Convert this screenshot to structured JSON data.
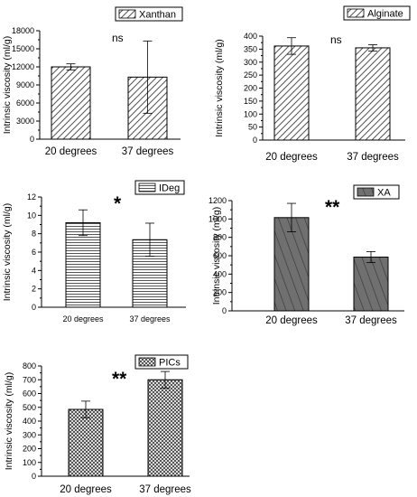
{
  "chart_data": [
    {
      "type": "bar",
      "ylabel": "Intrinsic viscosity (ml/g)",
      "categories": [
        "20 degrees",
        "37 degrees"
      ],
      "series": [
        {
          "name": "Xanthan",
          "values": [
            12000,
            10300
          ],
          "errors": [
            500,
            6000
          ]
        }
      ],
      "ylim": [
        0,
        18000
      ],
      "yticks": [
        "0",
        "3000",
        "6000",
        "9000",
        "12000",
        "15000",
        "18000"
      ],
      "annotation": "ns",
      "hatch": "diagonal",
      "bar_color": "#ffffff"
    },
    {
      "type": "bar",
      "ylabel": "Intrinsic viscosity (ml/g)",
      "categories": [
        "20 degrees",
        "37 degrees"
      ],
      "series": [
        {
          "name": "Alginate",
          "values": [
            362,
            355
          ],
          "errors": [
            32,
            12
          ]
        }
      ],
      "ylim": [
        0,
        400
      ],
      "yticks": [
        "0",
        "50",
        "100",
        "150",
        "200",
        "250",
        "300",
        "350",
        "400"
      ],
      "annotation": "ns",
      "hatch": "diagonal",
      "bar_color": "#ffffff"
    },
    {
      "type": "bar",
      "ylabel": "Intrinsic viscosity (ml/g)",
      "categories": [
        "20 degrees",
        "37 degrees"
      ],
      "series": [
        {
          "name": "IDeg",
          "values": [
            9.2,
            7.35
          ],
          "errors": [
            1.4,
            1.8
          ]
        }
      ],
      "ylim": [
        0,
        12
      ],
      "yticks": [
        "0",
        "2",
        "4",
        "6",
        "8",
        "10",
        "12"
      ],
      "annotation": "*",
      "hatch": "horizontal",
      "bar_color": "#ffffff"
    },
    {
      "type": "bar",
      "ylabel": "Intrinsic viscosity (ml/g)",
      "categories": [
        "20 degrees",
        "37 degrees"
      ],
      "series": [
        {
          "name": "XA",
          "values": [
            1015,
            585
          ],
          "errors": [
            155,
            60
          ]
        }
      ],
      "ylim": [
        0,
        1200
      ],
      "yticks": [
        "0",
        "200",
        "400",
        "600",
        "800",
        "1000",
        "1200"
      ],
      "annotation": "**",
      "hatch": "diagonal",
      "bar_color": "#707070"
    },
    {
      "type": "bar",
      "ylabel": "Intrinsic viscosity (ml/g)",
      "categories": [
        "20 degrees",
        "37 degrees"
      ],
      "series": [
        {
          "name": "PICs",
          "values": [
            485,
            700
          ],
          "errors": [
            60,
            60
          ]
        }
      ],
      "ylim": [
        0,
        800
      ],
      "yticks": [
        "0",
        "100",
        "200",
        "300",
        "400",
        "500",
        "600",
        "700",
        "800"
      ],
      "annotation": "**",
      "hatch": "crosshatch",
      "bar_color": "#ffffff"
    }
  ]
}
